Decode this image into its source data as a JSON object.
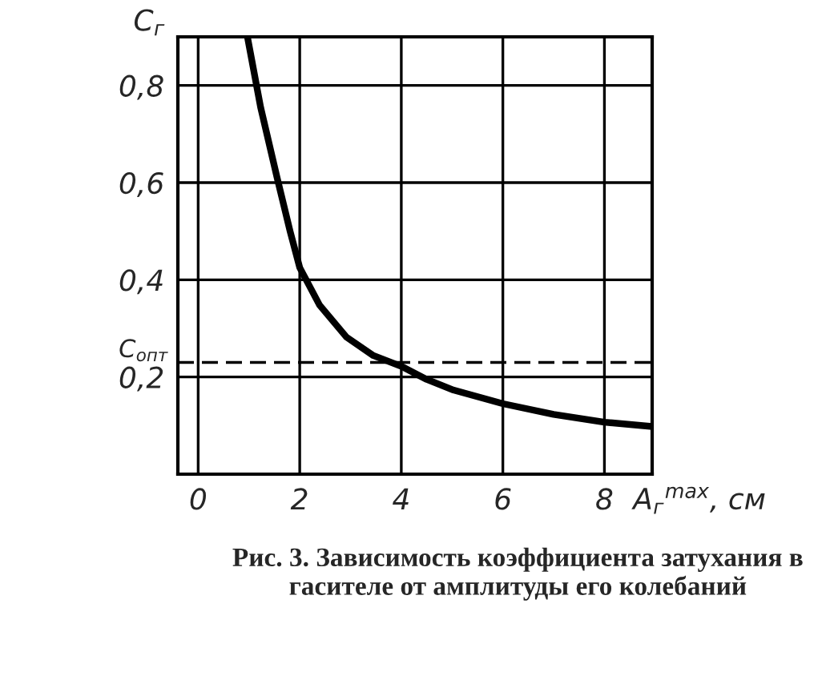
{
  "chart_data": {
    "type": "line",
    "x": [
      0.97,
      1.23,
      1.55,
      1.81,
      2.0,
      2.39,
      2.92,
      3.45,
      4.0,
      4.5,
      5.03,
      6.0,
      7.0,
      8.0,
      8.94
    ],
    "series": [
      {
        "color": "#000000",
        "values": [
          0.9,
          0.755,
          0.612,
          0.5,
          0.425,
          0.348,
          0.282,
          0.244,
          0.222,
          0.195,
          0.173,
          0.145,
          0.123,
          0.107,
          0.098
        ]
      }
    ],
    "xlim": [
      -0.4,
      8.94
    ],
    "ylim": [
      0,
      0.9
    ],
    "xticks": [
      0,
      2,
      4,
      6,
      8
    ],
    "yticks": [
      {
        "value": 0.2,
        "label": "0,2"
      },
      {
        "value": 0.4,
        "label": "0,4"
      },
      {
        "value": 0.6,
        "label": "0,6"
      },
      {
        "value": 0.8,
        "label": "0,8"
      }
    ],
    "xlabel": "A$_{г}$$^{max}$, см",
    "ylabel": "C$_{г}$",
    "ref_lines": [
      {
        "axis": "y",
        "value": 0.23,
        "label": "C$_{опт}$",
        "line_style": "dashed",
        "color": "#000000"
      }
    ],
    "grid": true,
    "marker": "none",
    "line_style": "solid",
    "annotations": [
      "Рис. 3. Зависимость коэффициента затухания в гасителе от амплитуды его колебаний"
    ]
  }
}
